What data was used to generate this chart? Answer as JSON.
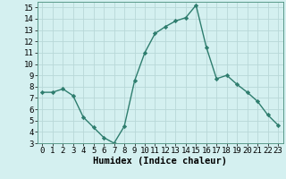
{
  "x": [
    0,
    1,
    2,
    3,
    4,
    5,
    6,
    7,
    8,
    9,
    10,
    11,
    12,
    13,
    14,
    15,
    16,
    17,
    18,
    19,
    20,
    21,
    22,
    23
  ],
  "y": [
    7.5,
    7.5,
    7.8,
    7.2,
    5.3,
    4.4,
    3.5,
    3.0,
    4.5,
    8.5,
    11.0,
    12.7,
    13.3,
    13.8,
    14.1,
    15.2,
    11.5,
    8.7,
    9.0,
    8.2,
    7.5,
    6.7,
    5.5,
    4.6
  ],
  "line_color": "#2e7d6e",
  "marker": "D",
  "marker_size": 2.2,
  "linewidth": 1.0,
  "bg_color": "#d4f0f0",
  "grid_color": "#b8d8d8",
  "xlabel": "Humidex (Indice chaleur)",
  "xlim": [
    -0.5,
    23.5
  ],
  "ylim": [
    3,
    15.5
  ],
  "yticks": [
    3,
    4,
    5,
    6,
    7,
    8,
    9,
    10,
    11,
    12,
    13,
    14,
    15
  ],
  "xticks": [
    0,
    1,
    2,
    3,
    4,
    5,
    6,
    7,
    8,
    9,
    10,
    11,
    12,
    13,
    14,
    15,
    16,
    17,
    18,
    19,
    20,
    21,
    22,
    23
  ],
  "xlabel_fontsize": 7.5,
  "tick_fontsize": 6.5
}
